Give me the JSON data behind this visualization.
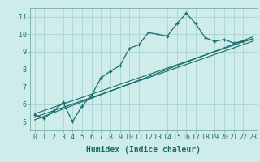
{
  "xlabel": "Humidex (Indice chaleur)",
  "background_color": "#ceecea",
  "grid_color": "#aed8d5",
  "line_color": "#1a6b6b",
  "xlim": [
    -0.5,
    23.5
  ],
  "ylim": [
    4.5,
    11.5
  ],
  "xticks": [
    0,
    1,
    2,
    3,
    4,
    5,
    6,
    7,
    8,
    9,
    10,
    11,
    12,
    13,
    14,
    15,
    16,
    17,
    18,
    19,
    20,
    21,
    22,
    23
  ],
  "yticks": [
    5,
    6,
    7,
    8,
    9,
    10,
    11
  ],
  "series1_x": [
    0,
    1,
    2,
    3,
    4,
    5,
    6,
    7,
    8,
    9,
    10,
    11,
    12,
    13,
    14,
    15,
    16,
    17,
    18,
    19,
    20,
    21,
    22,
    23
  ],
  "series1_y": [
    5.4,
    5.2,
    5.6,
    6.1,
    5.0,
    5.9,
    6.5,
    7.5,
    7.9,
    8.2,
    9.2,
    9.4,
    10.1,
    10.0,
    9.9,
    10.6,
    11.2,
    10.6,
    9.8,
    9.6,
    9.7,
    9.5,
    9.6,
    9.7
  ],
  "series2_x": [
    0,
    23
  ],
  "series2_y": [
    5.1,
    9.85
  ],
  "series3_x": [
    0,
    23
  ],
  "series3_y": [
    5.25,
    9.6
  ],
  "series4_x": [
    0,
    23
  ],
  "series4_y": [
    5.45,
    9.75
  ],
  "xlabel_fontsize": 7,
  "tick_fontsize": 6
}
